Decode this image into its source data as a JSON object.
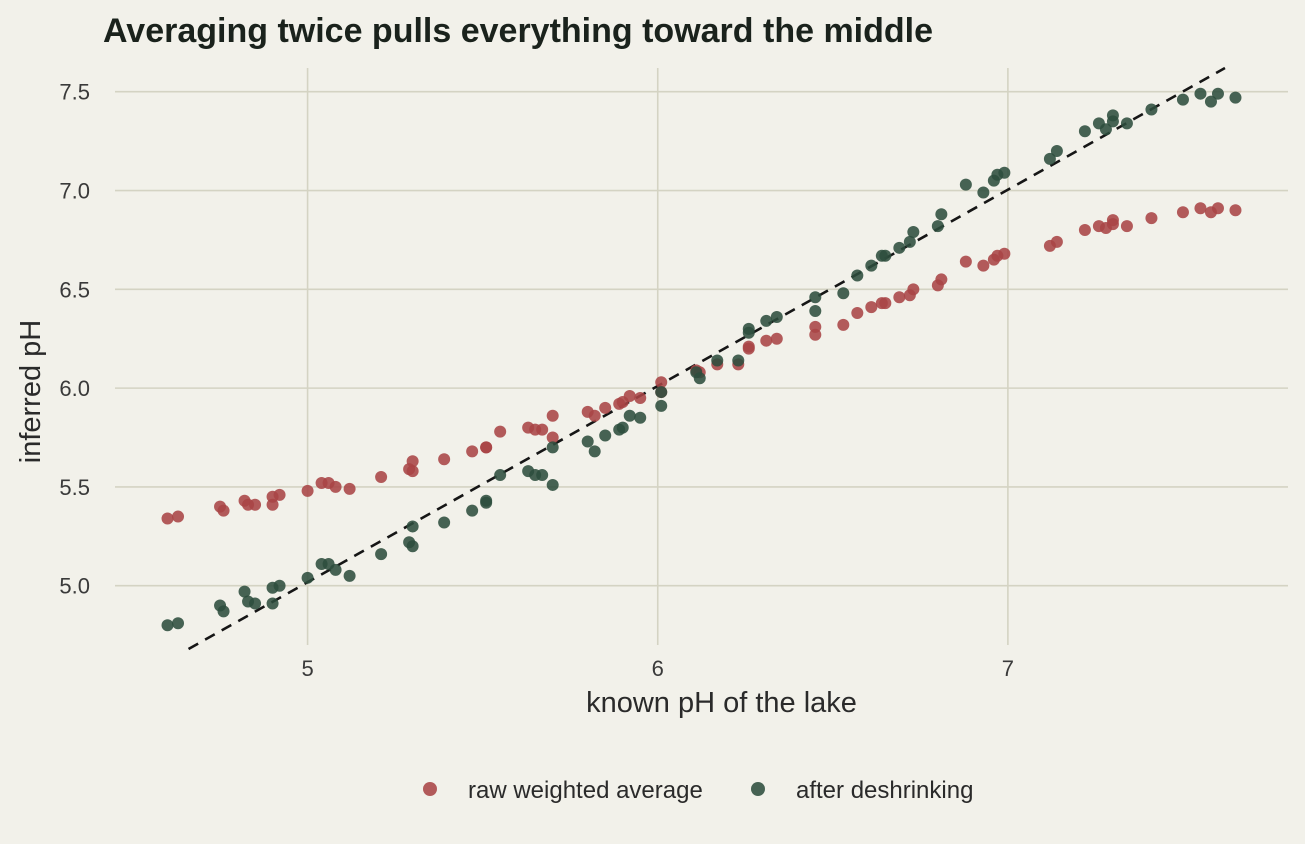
{
  "chart_data": {
    "type": "scatter",
    "title": "Averaging twice pulls everything toward the middle",
    "xlabel": "known pH of the lake",
    "ylabel": "inferred pH",
    "xlim": [
      4.45,
      7.8
    ],
    "ylim": [
      4.7,
      7.62
    ],
    "x_ticks": [
      5,
      6,
      7
    ],
    "x_tick_labels": [
      "5",
      "6",
      "7"
    ],
    "y_ticks": [
      5.0,
      5.5,
      6.0,
      6.5,
      7.0,
      7.5
    ],
    "y_tick_labels": [
      "5.0",
      "5.5",
      "6.0",
      "6.5",
      "7.0",
      "7.5"
    ],
    "grid": true,
    "legend_position": "bottom",
    "reference_line": {
      "style": "dashed",
      "color": "#161616",
      "x": [
        4.66,
        7.62
      ],
      "y": [
        4.68,
        7.62
      ]
    },
    "series": [
      {
        "name": "raw weighted average",
        "color": "#a84446",
        "x": [
          4.6,
          4.63,
          4.75,
          4.76,
          4.82,
          4.83,
          4.85,
          4.9,
          4.9,
          4.92,
          5.0,
          5.04,
          5.06,
          5.08,
          5.12,
          5.21,
          5.29,
          5.3,
          5.3,
          5.39,
          5.47,
          5.51,
          5.51,
          5.55,
          5.63,
          5.65,
          5.67,
          5.7,
          5.7,
          5.8,
          5.82,
          5.85,
          5.89,
          5.9,
          5.92,
          5.95,
          6.01,
          6.01,
          6.11,
          6.12,
          6.17,
          6.23,
          6.26,
          6.26,
          6.31,
          6.34,
          6.45,
          6.45,
          6.53,
          6.57,
          6.61,
          6.64,
          6.65,
          6.69,
          6.72,
          6.73,
          6.8,
          6.81,
          6.88,
          6.93,
          6.96,
          6.97,
          6.99,
          7.12,
          7.14,
          7.22,
          7.26,
          7.28,
          7.3,
          7.3,
          7.34,
          7.41,
          7.5,
          7.55,
          7.58,
          7.6,
          7.65
        ],
        "y": [
          5.34,
          5.35,
          5.4,
          5.38,
          5.43,
          5.41,
          5.41,
          5.41,
          5.45,
          5.46,
          5.48,
          5.52,
          5.52,
          5.5,
          5.49,
          5.55,
          5.59,
          5.58,
          5.63,
          5.64,
          5.68,
          5.7,
          5.7,
          5.78,
          5.8,
          5.79,
          5.79,
          5.86,
          5.75,
          5.88,
          5.86,
          5.9,
          5.92,
          5.93,
          5.96,
          5.95,
          6.03,
          5.98,
          6.09,
          6.08,
          6.12,
          6.12,
          6.2,
          6.21,
          6.24,
          6.25,
          6.27,
          6.31,
          6.32,
          6.38,
          6.41,
          6.43,
          6.43,
          6.46,
          6.47,
          6.5,
          6.52,
          6.55,
          6.64,
          6.62,
          6.65,
          6.67,
          6.68,
          6.72,
          6.74,
          6.8,
          6.82,
          6.81,
          6.83,
          6.85,
          6.82,
          6.86,
          6.89,
          6.91,
          6.89,
          6.91,
          6.9
        ]
      },
      {
        "name": "after deshrinking",
        "color": "#2e4d3d",
        "x": [
          4.6,
          4.63,
          4.75,
          4.76,
          4.82,
          4.83,
          4.85,
          4.9,
          4.9,
          4.92,
          5.0,
          5.04,
          5.06,
          5.08,
          5.12,
          5.21,
          5.29,
          5.3,
          5.3,
          5.39,
          5.47,
          5.51,
          5.51,
          5.55,
          5.63,
          5.65,
          5.67,
          5.7,
          5.7,
          5.8,
          5.82,
          5.85,
          5.89,
          5.9,
          5.92,
          5.95,
          6.01,
          6.01,
          6.11,
          6.12,
          6.17,
          6.23,
          6.26,
          6.26,
          6.31,
          6.34,
          6.45,
          6.45,
          6.53,
          6.57,
          6.61,
          6.64,
          6.65,
          6.69,
          6.72,
          6.73,
          6.8,
          6.81,
          6.88,
          6.93,
          6.96,
          6.97,
          6.99,
          7.12,
          7.14,
          7.22,
          7.26,
          7.28,
          7.3,
          7.3,
          7.34,
          7.41,
          7.5,
          7.55,
          7.58,
          7.6,
          7.65
        ],
        "y": [
          4.8,
          4.81,
          4.9,
          4.87,
          4.97,
          4.92,
          4.91,
          4.91,
          4.99,
          5.0,
          5.04,
          5.11,
          5.11,
          5.08,
          5.05,
          5.16,
          5.22,
          5.2,
          5.3,
          5.32,
          5.38,
          5.42,
          5.43,
          5.56,
          5.58,
          5.56,
          5.56,
          5.7,
          5.51,
          5.73,
          5.68,
          5.76,
          5.79,
          5.8,
          5.86,
          5.85,
          5.98,
          5.91,
          6.08,
          6.05,
          6.14,
          6.14,
          6.28,
          6.3,
          6.34,
          6.36,
          6.39,
          6.46,
          6.48,
          6.57,
          6.62,
          6.67,
          6.67,
          6.71,
          6.74,
          6.79,
          6.82,
          6.88,
          7.03,
          6.99,
          7.05,
          7.08,
          7.09,
          7.16,
          7.2,
          7.3,
          7.34,
          7.31,
          7.35,
          7.38,
          7.34,
          7.41,
          7.46,
          7.49,
          7.45,
          7.49,
          7.47
        ]
      }
    ]
  }
}
